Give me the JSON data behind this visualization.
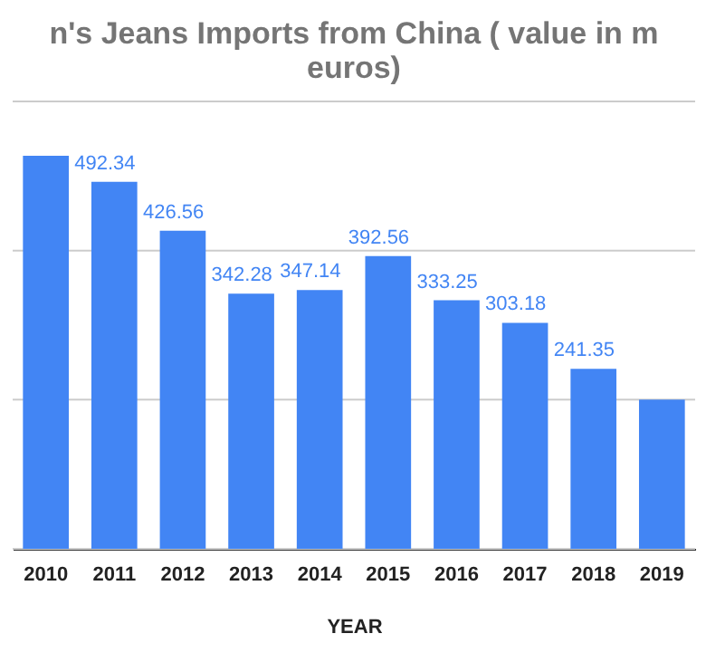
{
  "chart_data": {
    "type": "bar",
    "title": "n's Jeans Imports from China ( value in m\neuros)",
    "xlabel": "YEAR",
    "categories": [
      "2010",
      "2011",
      "2012",
      "2013",
      "2014",
      "2015",
      "2016",
      "2017",
      "2018",
      "2019"
    ],
    "values": [
      527,
      492.34,
      426.56,
      342.28,
      347.14,
      392.56,
      333.25,
      303.18,
      241.35,
      200
    ],
    "value_labels": [
      null,
      "492.34",
      "426.56",
      "342.28",
      "347.14",
      "392.56",
      "333.25",
      "303.18",
      "241.35",
      null
    ],
    "color": "#4285f4",
    "ylim": [
      0,
      600
    ],
    "yticks": [
      {
        "value": 0,
        "label": null
      },
      {
        "value": 200,
        "label": null
      },
      {
        "value": 400,
        "label": null
      },
      {
        "value": 600,
        "label": null
      }
    ],
    "grid": "y"
  }
}
